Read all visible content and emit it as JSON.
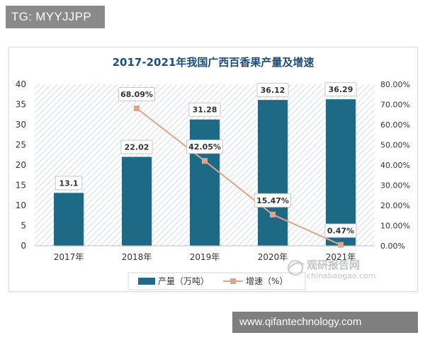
{
  "badge": {
    "text": "TG: MYYJJPP"
  },
  "banner": {
    "text": "www.qifantechnology.com"
  },
  "watermark": {
    "name": "观研报告网",
    "url": "chinabaogao.com"
  },
  "colors": {
    "bar": "#1f6b86",
    "line": "#e0a487",
    "marker": "#e0a487",
    "title": "#1f4e79",
    "label_border": "#c8c8c8",
    "grid_stripe": "#e8ebee"
  },
  "chart_data": {
    "type": "bar",
    "title": "2017-2021年我国广西百香果产量及增速",
    "categories": [
      "2017年",
      "2018年",
      "2019年",
      "2020年",
      "2021年"
    ],
    "series": [
      {
        "name": "产量（万吨）",
        "kind": "bar",
        "axis": "left",
        "values": [
          13.1,
          22.02,
          31.28,
          36.12,
          36.29
        ]
      },
      {
        "name": "增速（%）",
        "kind": "line",
        "axis": "right",
        "values": [
          null,
          68.09,
          42.05,
          15.47,
          0.47
        ]
      }
    ],
    "bar_labels": [
      "13.1",
      "22.02",
      "31.28",
      "36.12",
      "36.29"
    ],
    "line_labels": [
      "",
      "68.09%",
      "42.05%",
      "15.47%",
      "0.47%"
    ],
    "ylim_left": [
      0,
      40
    ],
    "ylim_right": [
      0,
      80
    ],
    "yticks_left": [
      "0",
      "5",
      "10",
      "15",
      "20",
      "25",
      "30",
      "35",
      "40"
    ],
    "yticks_right": [
      "0.00%",
      "10.00%",
      "20.00%",
      "30.00%",
      "40.00%",
      "50.00%",
      "60.00%",
      "70.00%",
      "80.00%"
    ],
    "grid": "diagonal-hatch",
    "legend": "bottom-center"
  }
}
